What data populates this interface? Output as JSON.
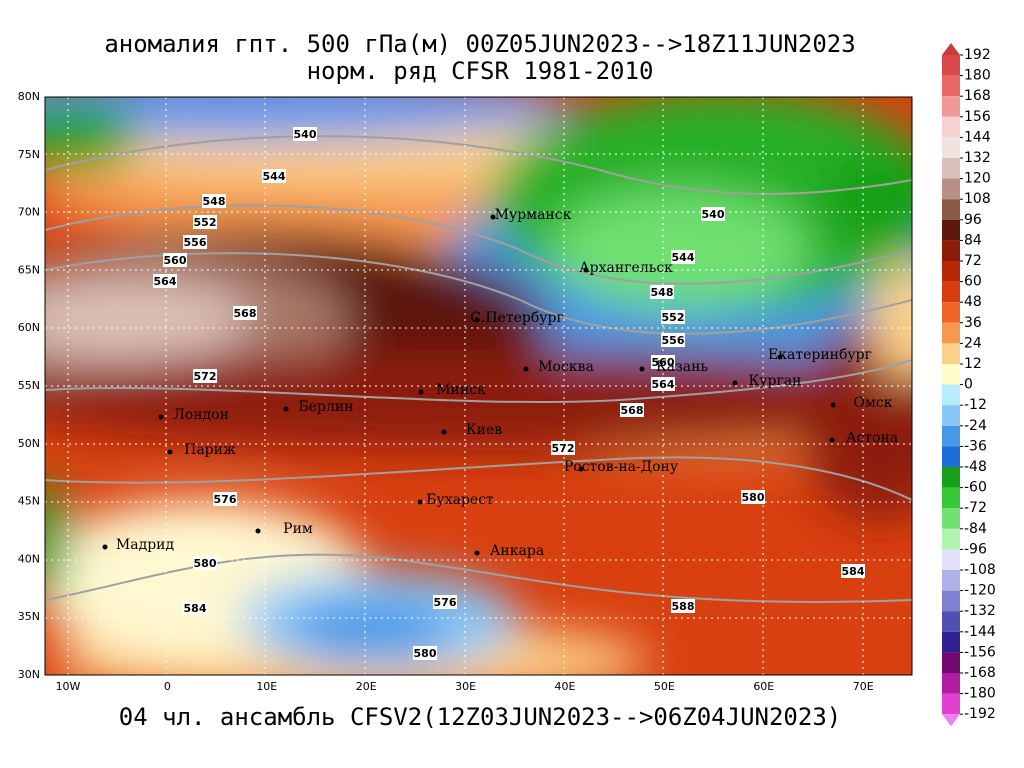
{
  "title": [
    "аномалия гпт. 500 гПа(м) 00Z05JUN2023-->18Z11JUN2023",
    "норм. ряд CFSR 1981-2010"
  ],
  "footer": "04 чл. ансамбль CFSV2(12Z03JUN2023-->06Z04JUN2023)",
  "lat_labels": [
    "80N",
    "75N",
    "70N",
    "65N",
    "60N",
    "55N",
    "50N",
    "45N",
    "40N",
    "35N",
    "30N"
  ],
  "lon_labels": [
    "10W",
    "0",
    "10E",
    "20E",
    "30E",
    "40E",
    "50E",
    "60E",
    "70E"
  ],
  "contour_labels": [
    "540",
    "544",
    "548",
    "552",
    "556",
    "560",
    "564",
    "568",
    "572",
    "540",
    "544",
    "548",
    "552",
    "556",
    "560",
    "564",
    "568",
    "572",
    "576",
    "580",
    "584",
    "576",
    "580",
    "588",
    "584",
    "580"
  ],
  "cities": [
    "Мурманск",
    "Архангельск",
    "С.Петербург",
    "Москва",
    "Казань",
    "Екатеринбург",
    "Курган",
    "Омск",
    "Астона",
    "Минск",
    "Берлин",
    "Лондон",
    "Париж",
    "Киев",
    "Ростов-на-Дону",
    "Бухарест",
    "Рим",
    "Мадрид",
    "Анкара"
  ],
  "colorbar": {
    "ticks": [
      192,
      180,
      168,
      156,
      144,
      132,
      120,
      108,
      96,
      84,
      72,
      60,
      48,
      36,
      24,
      12,
      0,
      -12,
      -24,
      -36,
      -48,
      -60,
      -72,
      -84,
      -96,
      -108,
      -120,
      -132,
      -144,
      -156,
      -168,
      -180,
      -192
    ],
    "colors": [
      "#c83c3c",
      "#d84848",
      "#e86868",
      "#f09898",
      "#f8d0d0",
      "#f0e4e0",
      "#d8c0b8",
      "#b89088",
      "#8c5848",
      "#5c1808",
      "#8c1c08",
      "#b42808",
      "#d83c10",
      "#f06428",
      "#f89850",
      "#fcd088",
      "#fffbc8",
      "#b8ecfc",
      "#88c8f8",
      "#4898e8",
      "#1e6ed8",
      "#18a018",
      "#38c838",
      "#70e070",
      "#b0f4b0",
      "#e0e0f8",
      "#b0b0e8",
      "#8080d0",
      "#5050b0",
      "#302090",
      "#700870",
      "#b01ca0",
      "#e040d0",
      "#f080f0"
    ]
  }
}
